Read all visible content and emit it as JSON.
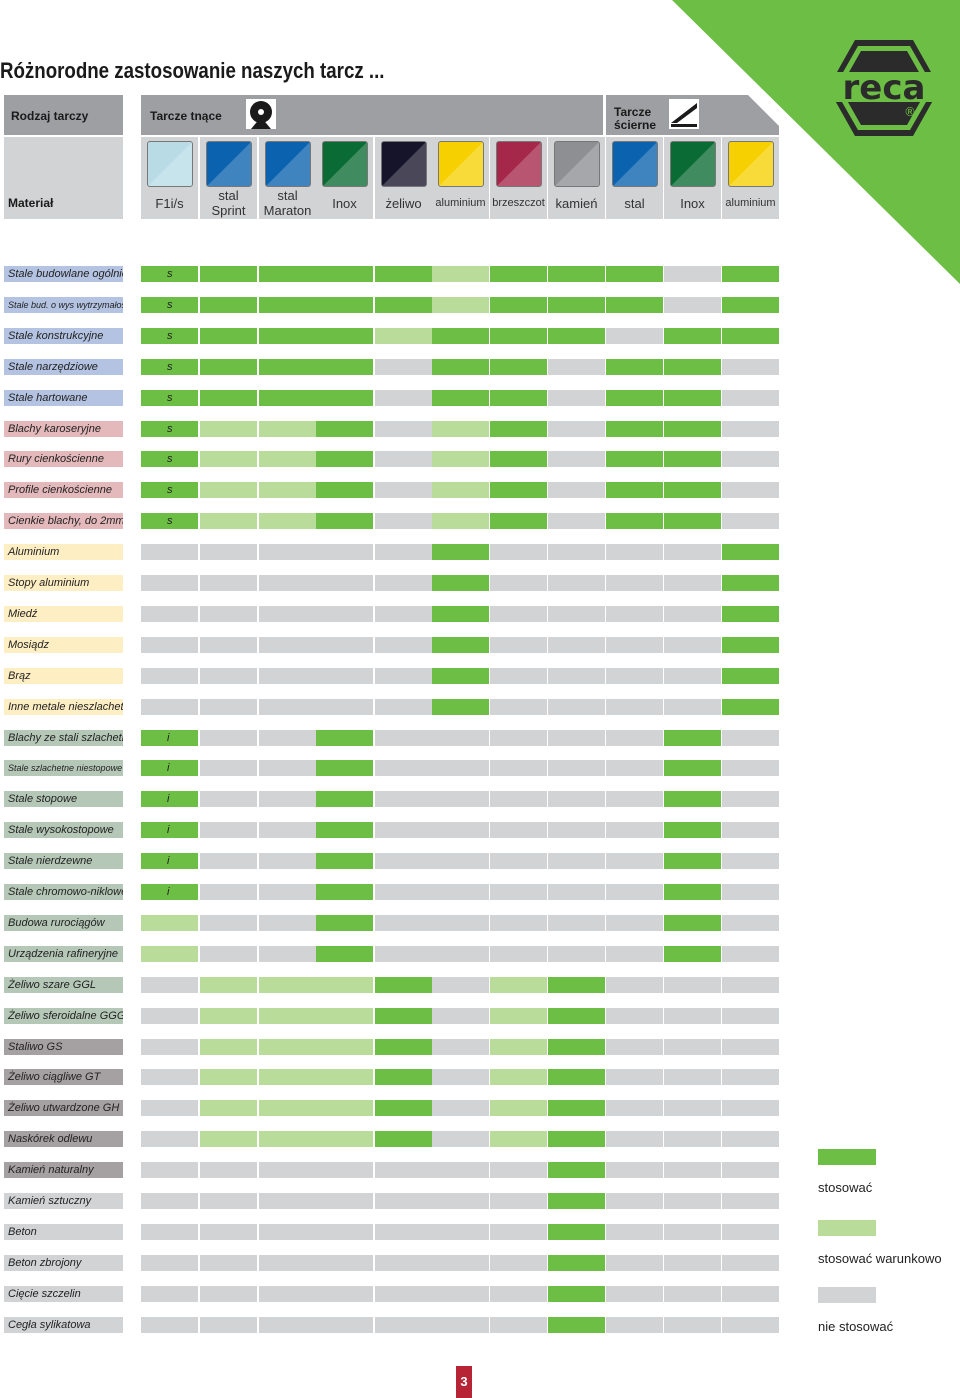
{
  "title": "Różnorodne zastosowanie naszych tarcz ...",
  "header": {
    "rodzaj": "Rodzaj tarczy",
    "tnace": "Tarcze tnące",
    "scierne_1": "Tarcze",
    "scierne_2": "ścierne",
    "material": "Materiał"
  },
  "logo": {
    "text": "reca",
    "mark": "®"
  },
  "colors": {
    "full": "#6cbf44",
    "cond": "#b9dc9a",
    "none": "#d1d3d4",
    "corner": "#6cbf44"
  },
  "columns": [
    {
      "label": "F1i/s",
      "swatch": "#b8dbe6",
      "small": false
    },
    {
      "label": "stal Sprint",
      "swatch": "#0b62ae",
      "small": false
    },
    {
      "label": "stal Maraton",
      "swatch": "#0b62ae",
      "small": false
    },
    {
      "label": "Inox",
      "swatch": "#0b6b34",
      "small": false
    },
    {
      "label": "żeliwo",
      "swatch": "#16142a",
      "small": false
    },
    {
      "label": "aluminium",
      "swatch": "#f6d000",
      "small": true
    },
    {
      "label": "brzeszczot",
      "swatch": "#a52749",
      "small": true
    },
    {
      "label": "kamień",
      "swatch": "#8e8f92",
      "small": false
    },
    {
      "label": "stal",
      "swatch": "#0b62ae",
      "small": false
    },
    {
      "label": "Inox",
      "swatch": "#0b6b34",
      "small": false
    },
    {
      "label": "aluminium",
      "swatch": "#f6d000",
      "small": true
    }
  ],
  "rows": [
    {
      "label": "Stale budowlane ogólnie",
      "bg": "#b3c3e1",
      "mark": "s",
      "cells": "22222122202"
    },
    {
      "label": "Stale bud. o wys wytrzymałości",
      "bg": "#b3c3e1",
      "mark": "s",
      "cells": "22222122202",
      "small": true
    },
    {
      "label": "Stale konstrukcyjne",
      "bg": "#b3c3e1",
      "mark": "s",
      "cells": "22221222022"
    },
    {
      "label": "Stale narzędziowe",
      "bg": "#b3c3e1",
      "mark": "s",
      "cells": "22220220220"
    },
    {
      "label": "Stale hartowane",
      "bg": "#b3c3e1",
      "mark": "s",
      "cells": "22220220220"
    },
    {
      "label": "Blachy karoseryjne",
      "bg": "#e4b9bb",
      "mark": "s",
      "cells": "21120120220"
    },
    {
      "label": "Rury cienkościenne",
      "bg": "#e4b9bb",
      "mark": "s",
      "cells": "21120120220"
    },
    {
      "label": "Profile cienkościenne",
      "bg": "#e4b9bb",
      "mark": "s",
      "cells": "21120120220"
    },
    {
      "label": "Cienkie blachy, do 2mm",
      "bg": "#e4b9bb",
      "mark": "s",
      "cells": "21120120220"
    },
    {
      "label": "Aluminium",
      "bg": "#fdeec3",
      "mark": "",
      "cells": "00000200002"
    },
    {
      "label": "Stopy aluminium",
      "bg": "#fdeec3",
      "mark": "",
      "cells": "00000200002"
    },
    {
      "label": "Miedź",
      "bg": "#fdeec3",
      "mark": "",
      "cells": "00000200002"
    },
    {
      "label": "Mosiądz",
      "bg": "#fdeec3",
      "mark": "",
      "cells": "00000200002"
    },
    {
      "label": "Brąz",
      "bg": "#fdeec3",
      "mark": "",
      "cells": "00000200002"
    },
    {
      "label": "Inne metale nieszlachetne",
      "bg": "#fdeec3",
      "mark": "",
      "cells": "00000200002"
    },
    {
      "label": "Blachy ze stali szlachetnej",
      "bg": "#b5c7b7",
      "mark": "i",
      "cells": "20020000020"
    },
    {
      "label": "Stale szlachetne niestopowe",
      "bg": "#b5c7b7",
      "mark": "i",
      "cells": "20020000020",
      "small": true
    },
    {
      "label": "Stale stopowe",
      "bg": "#b5c7b7",
      "mark": "i",
      "cells": "20020000020"
    },
    {
      "label": "Stale wysokostopowe",
      "bg": "#b5c7b7",
      "mark": "i",
      "cells": "20020000020"
    },
    {
      "label": "Stale nierdzewne",
      "bg": "#b5c7b7",
      "mark": "i",
      "cells": "20020000020"
    },
    {
      "label": "Stale chromowo-niklowe",
      "bg": "#b5c7b7",
      "mark": "i",
      "cells": "20020000020"
    },
    {
      "label": "Budowa rurociągów",
      "bg": "#b5c7b7",
      "mark": "",
      "cells": "10020000020"
    },
    {
      "label": "Urządzenia rafineryjne",
      "bg": "#b5c7b7",
      "mark": "",
      "cells": "10020000020"
    },
    {
      "label": "Żeliwo szare GGL",
      "bg": "#b5c7b7",
      "mark": "",
      "cells": "01112012000"
    },
    {
      "label": "Żeliwo sferoidalne GGG",
      "bg": "#b5c7b7",
      "mark": "",
      "cells": "01112012000"
    },
    {
      "label": "Staliwo GS",
      "bg": "#a5a0a2",
      "mark": "",
      "cells": "01112012000"
    },
    {
      "label": "Żeliwo ciągliwe GT",
      "bg": "#a5a0a2",
      "mark": "",
      "cells": "01112012000"
    },
    {
      "label": "Żeliwo utwardzone GH",
      "bg": "#a5a0a2",
      "mark": "",
      "cells": "01112012000"
    },
    {
      "label": "Naskórek odlewu",
      "bg": "#a5a0a2",
      "mark": "",
      "cells": "01112012000"
    },
    {
      "label": "Kamień naturalny",
      "bg": "#a5a0a2",
      "mark": "",
      "cells": "00000002000"
    },
    {
      "label": "Kamień sztuczny",
      "bg": "#d1d3d4",
      "mark": "",
      "cells": "00000002000"
    },
    {
      "label": "Beton",
      "bg": "#d1d3d4",
      "mark": "",
      "cells": "00000002000"
    },
    {
      "label": "Beton zbrojony",
      "bg": "#d1d3d4",
      "mark": "",
      "cells": "00000002000"
    },
    {
      "label": "Cięcie szczelin",
      "bg": "#d1d3d4",
      "mark": "",
      "cells": "00000002000"
    },
    {
      "label": "Cegła sylikatowa",
      "bg": "#d1d3d4",
      "mark": "",
      "cells": "00000002000"
    }
  ],
  "legend": {
    "full": "stosować",
    "cond": "stosować warunkowo",
    "none": "nie stosować"
  },
  "page_number": "3"
}
